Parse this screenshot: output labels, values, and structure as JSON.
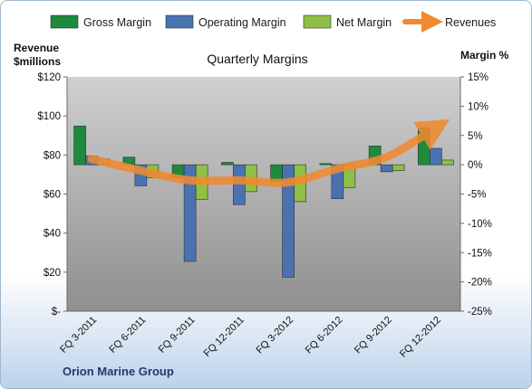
{
  "chart_data": {
    "type": "bar",
    "title": "Quarterly Margins",
    "company": "Orion Marine Group",
    "left_axis_title": [
      "Revenue",
      "$millions"
    ],
    "right_axis_title": "Margin %",
    "left_ticks": [
      "$-",
      "$20",
      "$40",
      "$60",
      "$80",
      "$100",
      "$120"
    ],
    "left_ylim": [
      0,
      120
    ],
    "right_ticks": [
      "-25%",
      "-20%",
      "-15%",
      "-10%",
      "-5%",
      "0%",
      "5%",
      "10%",
      "15%"
    ],
    "right_ylim": [
      -25,
      15
    ],
    "categories": [
      "FQ 3-2011",
      "FQ 6-2011",
      "FQ 9-2011",
      "FQ 12-2011",
      "FQ 3-2012",
      "FQ 6-2012",
      "FQ 9-2012",
      "FQ 12-2012"
    ],
    "legend_position": "top",
    "grid": false,
    "series": [
      {
        "name": "Gross Margin",
        "kind": "bar",
        "axis": "right",
        "color": "#1e8a3c",
        "values": [
          6.6,
          1.3,
          -2.2,
          0.4,
          -2.8,
          0.2,
          3.2,
          6.3
        ]
      },
      {
        "name": "Operating Margin",
        "kind": "bar",
        "axis": "right",
        "color": "#4a72b0",
        "values": [
          1.5,
          -3.6,
          -16.5,
          -6.8,
          -19.2,
          -5.8,
          -1.2,
          2.8
        ]
      },
      {
        "name": "Net Margin",
        "kind": "bar",
        "axis": "right",
        "color": "#8fbf45",
        "values": [
          1.0,
          -2.2,
          -5.9,
          -4.6,
          -6.3,
          -3.9,
          -1.0,
          0.8
        ]
      },
      {
        "name": "Revenues",
        "kind": "line",
        "axis": "left",
        "color": "#f08a30",
        "values": [
          78,
          72,
          67,
          67,
          66,
          73,
          79,
          94
        ]
      }
    ]
  },
  "colors": {
    "plot_top": "#d0d0d0",
    "plot_bottom": "#8f8f8f",
    "bar_stroke": "#2f2f2f"
  }
}
